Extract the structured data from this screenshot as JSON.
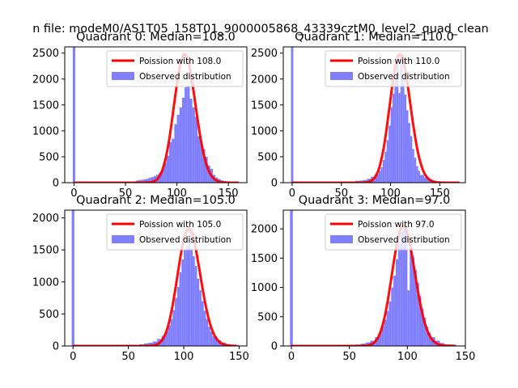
{
  "suptitle": "n file: modeM0/AS1T05_158T01_9000005868_43339cztM0_level2_quad_clean",
  "chart_data": [
    {
      "type": "bar",
      "title": "Quadrant 0: Median=108.0",
      "xlim": [
        -9,
        168
      ],
      "ylim": [
        0,
        2620
      ],
      "xticks": [
        0,
        50,
        100,
        150
      ],
      "yticks": [
        0,
        500,
        1000,
        1500,
        2000,
        2500
      ],
      "legend": [
        "Poission with 108.0",
        "Observed distribution"
      ],
      "legend_position": "upper-right",
      "spike": {
        "x": 0,
        "value": 2620
      },
      "bins": [
        [
          0,
          5,
          12
        ],
        [
          5,
          10,
          12
        ],
        [
          10,
          15,
          12
        ],
        [
          15,
          20,
          12
        ],
        [
          20,
          25,
          12
        ],
        [
          25,
          30,
          12
        ],
        [
          30,
          35,
          12
        ],
        [
          35,
          40,
          12
        ],
        [
          40,
          45,
          12
        ],
        [
          45,
          50,
          12
        ],
        [
          50,
          55,
          12
        ],
        [
          55,
          60,
          12
        ],
        [
          60,
          62.5,
          40
        ],
        [
          62.5,
          65,
          50
        ],
        [
          65,
          67.5,
          55
        ],
        [
          67.5,
          70,
          65
        ],
        [
          70,
          72.5,
          75
        ],
        [
          72.5,
          75,
          95
        ],
        [
          75,
          77.5,
          110
        ],
        [
          77.5,
          80,
          130
        ],
        [
          80,
          82.5,
          155
        ],
        [
          82.5,
          85,
          200
        ],
        [
          85,
          87.5,
          270
        ],
        [
          87.5,
          90,
          380
        ],
        [
          90,
          92.5,
          520
        ],
        [
          92.5,
          95,
          780
        ],
        [
          95,
          97.5,
          850
        ],
        [
          97.5,
          100,
          1130
        ],
        [
          100,
          102.5,
          1310
        ],
        [
          102.5,
          105,
          1450
        ],
        [
          105,
          107.5,
          1640
        ],
        [
          107.5,
          110,
          1840
        ],
        [
          110,
          112.5,
          1860
        ],
        [
          112.5,
          115,
          1620
        ],
        [
          115,
          117.5,
          1450
        ],
        [
          117.5,
          120,
          1270
        ],
        [
          120,
          122.5,
          900
        ],
        [
          122.5,
          125,
          800
        ],
        [
          125,
          127.5,
          650
        ],
        [
          127.5,
          130,
          500
        ],
        [
          130,
          132.5,
          330
        ],
        [
          132.5,
          135,
          270
        ],
        [
          135,
          137.5,
          150
        ],
        [
          137.5,
          140,
          100
        ],
        [
          140,
          142.5,
          70
        ],
        [
          142.5,
          145,
          45
        ],
        [
          145,
          147.5,
          30
        ],
        [
          147.5,
          150,
          20
        ],
        [
          150,
          160,
          15
        ]
      ],
      "poisson": {
        "mu": 108,
        "scale": 2480,
        "xmin": 0,
        "xmax": 160
      }
    },
    {
      "type": "bar",
      "title": "Quadrant 1: Median=110.0",
      "xlim": [
        -9,
        176
      ],
      "ylim": [
        0,
        2620
      ],
      "xticks": [
        0,
        50,
        100,
        150
      ],
      "yticks": [
        0,
        500,
        1000,
        1500,
        2000,
        2500
      ],
      "legend": [
        "Poission with 110.0",
        "Observed distribution"
      ],
      "legend_position": "upper-right",
      "spike": {
        "x": 0,
        "value": 2620
      },
      "bins": [
        [
          0,
          5,
          12
        ],
        [
          5,
          10,
          12
        ],
        [
          10,
          15,
          12
        ],
        [
          15,
          20,
          12
        ],
        [
          20,
          25,
          12
        ],
        [
          25,
          30,
          12
        ],
        [
          30,
          35,
          12
        ],
        [
          35,
          40,
          12
        ],
        [
          40,
          45,
          12
        ],
        [
          45,
          50,
          12
        ],
        [
          50,
          55,
          12
        ],
        [
          55,
          60,
          12
        ],
        [
          60,
          64,
          20
        ],
        [
          64,
          68,
          35
        ],
        [
          68,
          72,
          40
        ],
        [
          72,
          76,
          50
        ],
        [
          76,
          80,
          75
        ],
        [
          80,
          84,
          115
        ],
        [
          84,
          88,
          160
        ],
        [
          88,
          90,
          230
        ],
        [
          90,
          92,
          300
        ],
        [
          92,
          94,
          440
        ],
        [
          94,
          96,
          600
        ],
        [
          96,
          98,
          820
        ],
        [
          98,
          100,
          1100
        ],
        [
          100,
          102,
          1450
        ],
        [
          102,
          104,
          1720
        ],
        [
          104,
          106,
          2050
        ],
        [
          106,
          108,
          2300
        ],
        [
          108,
          110,
          1730
        ],
        [
          110,
          112,
          2430
        ],
        [
          112,
          114,
          2000
        ],
        [
          114,
          116,
          1700
        ],
        [
          116,
          118,
          1400
        ],
        [
          118,
          120,
          1150
        ],
        [
          120,
          122,
          900
        ],
        [
          122,
          124,
          650
        ],
        [
          124,
          126,
          480
        ],
        [
          126,
          128,
          320
        ],
        [
          128,
          130,
          230
        ],
        [
          130,
          134,
          150
        ],
        [
          134,
          138,
          100
        ],
        [
          138,
          142,
          70
        ],
        [
          142,
          146,
          40
        ],
        [
          146,
          150,
          25
        ],
        [
          150,
          160,
          15
        ],
        [
          160,
          170,
          12
        ]
      ],
      "poisson": {
        "mu": 110,
        "scale": 2480,
        "xmin": 0,
        "xmax": 170
      }
    },
    {
      "type": "bar",
      "title": "Quadrant 2: Median=105.0",
      "xlim": [
        -7.5,
        157
      ],
      "ylim": [
        0,
        2120
      ],
      "xticks": [
        0,
        50,
        100,
        150
      ],
      "yticks": [
        0,
        500,
        1000,
        1500,
        2000
      ],
      "legend": [
        "Poission with 105.0",
        "Observed distribution"
      ],
      "legend_position": "upper-right",
      "spike": {
        "x": 0,
        "value": 2120
      },
      "bins": [
        [
          0,
          5,
          12
        ],
        [
          5,
          10,
          12
        ],
        [
          10,
          15,
          12
        ],
        [
          15,
          20,
          12
        ],
        [
          20,
          25,
          12
        ],
        [
          25,
          30,
          12
        ],
        [
          30,
          35,
          12
        ],
        [
          35,
          40,
          12
        ],
        [
          40,
          45,
          12
        ],
        [
          45,
          50,
          12
        ],
        [
          50,
          55,
          12
        ],
        [
          55,
          60,
          12
        ],
        [
          60,
          64,
          25
        ],
        [
          64,
          68,
          40
        ],
        [
          68,
          72,
          50
        ],
        [
          72,
          76,
          70
        ],
        [
          76,
          80,
          110
        ],
        [
          80,
          84,
          160
        ],
        [
          84,
          86,
          230
        ],
        [
          86,
          88,
          320
        ],
        [
          88,
          90,
          420
        ],
        [
          90,
          92,
          560
        ],
        [
          92,
          94,
          750
        ],
        [
          94,
          96,
          920
        ],
        [
          96,
          98,
          1150
        ],
        [
          98,
          100,
          1350
        ],
        [
          100,
          102,
          1500
        ],
        [
          102,
          104,
          1560
        ],
        [
          104,
          106,
          1650
        ],
        [
          106,
          108,
          1520
        ],
        [
          108,
          110,
          1400
        ],
        [
          110,
          112,
          1250
        ],
        [
          112,
          114,
          1050
        ],
        [
          114,
          116,
          870
        ],
        [
          116,
          118,
          700
        ],
        [
          118,
          120,
          550
        ],
        [
          120,
          122,
          420
        ],
        [
          122,
          124,
          300
        ],
        [
          124,
          126,
          220
        ],
        [
          126,
          130,
          150
        ],
        [
          130,
          134,
          90
        ],
        [
          134,
          138,
          55
        ],
        [
          138,
          142,
          30
        ],
        [
          142,
          150,
          15
        ]
      ],
      "poisson": {
        "mu": 105,
        "scale": 1830,
        "xmin": 0,
        "xmax": 148
      }
    },
    {
      "type": "bar",
      "title": "Quadrant 3: Median=97.0",
      "xlim": [
        -7,
        150
      ],
      "ylim": [
        0,
        2320
      ],
      "xticks": [
        0,
        50,
        100,
        150
      ],
      "yticks": [
        0,
        500,
        1000,
        1500,
        2000
      ],
      "legend": [
        "Poission with 97.0",
        "Observed distribution"
      ],
      "legend_position": "upper-right",
      "spike": {
        "x": 0,
        "value": 2320
      },
      "bins": [
        [
          0,
          5,
          12
        ],
        [
          5,
          10,
          12
        ],
        [
          10,
          15,
          12
        ],
        [
          15,
          20,
          12
        ],
        [
          20,
          25,
          12
        ],
        [
          25,
          30,
          12
        ],
        [
          30,
          35,
          12
        ],
        [
          35,
          40,
          12
        ],
        [
          40,
          45,
          12
        ],
        [
          45,
          50,
          12
        ],
        [
          50,
          55,
          12
        ],
        [
          55,
          60,
          25
        ],
        [
          60,
          64,
          40
        ],
        [
          64,
          68,
          60
        ],
        [
          68,
          72,
          90
        ],
        [
          72,
          76,
          150
        ],
        [
          76,
          78,
          240
        ],
        [
          78,
          80,
          330
        ],
        [
          80,
          82,
          450
        ],
        [
          82,
          84,
          600
        ],
        [
          84,
          86,
          760
        ],
        [
          86,
          88,
          1000
        ],
        [
          88,
          90,
          1200
        ],
        [
          90,
          92,
          1480
        ],
        [
          92,
          94,
          1750
        ],
        [
          94,
          96,
          1950
        ],
        [
          96,
          98,
          2000
        ],
        [
          98,
          100,
          1980
        ],
        [
          100,
          102,
          950
        ],
        [
          102,
          104,
          1750
        ],
        [
          104,
          106,
          1520
        ],
        [
          106,
          108,
          1300
        ],
        [
          108,
          110,
          1080
        ],
        [
          110,
          112,
          850
        ],
        [
          112,
          114,
          640
        ],
        [
          114,
          116,
          480
        ],
        [
          116,
          118,
          330
        ],
        [
          118,
          120,
          230
        ],
        [
          120,
          124,
          150
        ],
        [
          124,
          128,
          90
        ],
        [
          128,
          132,
          50
        ],
        [
          132,
          140,
          25
        ]
      ],
      "poisson": {
        "mu": 97,
        "scale": 2050,
        "xmin": 0,
        "xmax": 142
      }
    }
  ]
}
